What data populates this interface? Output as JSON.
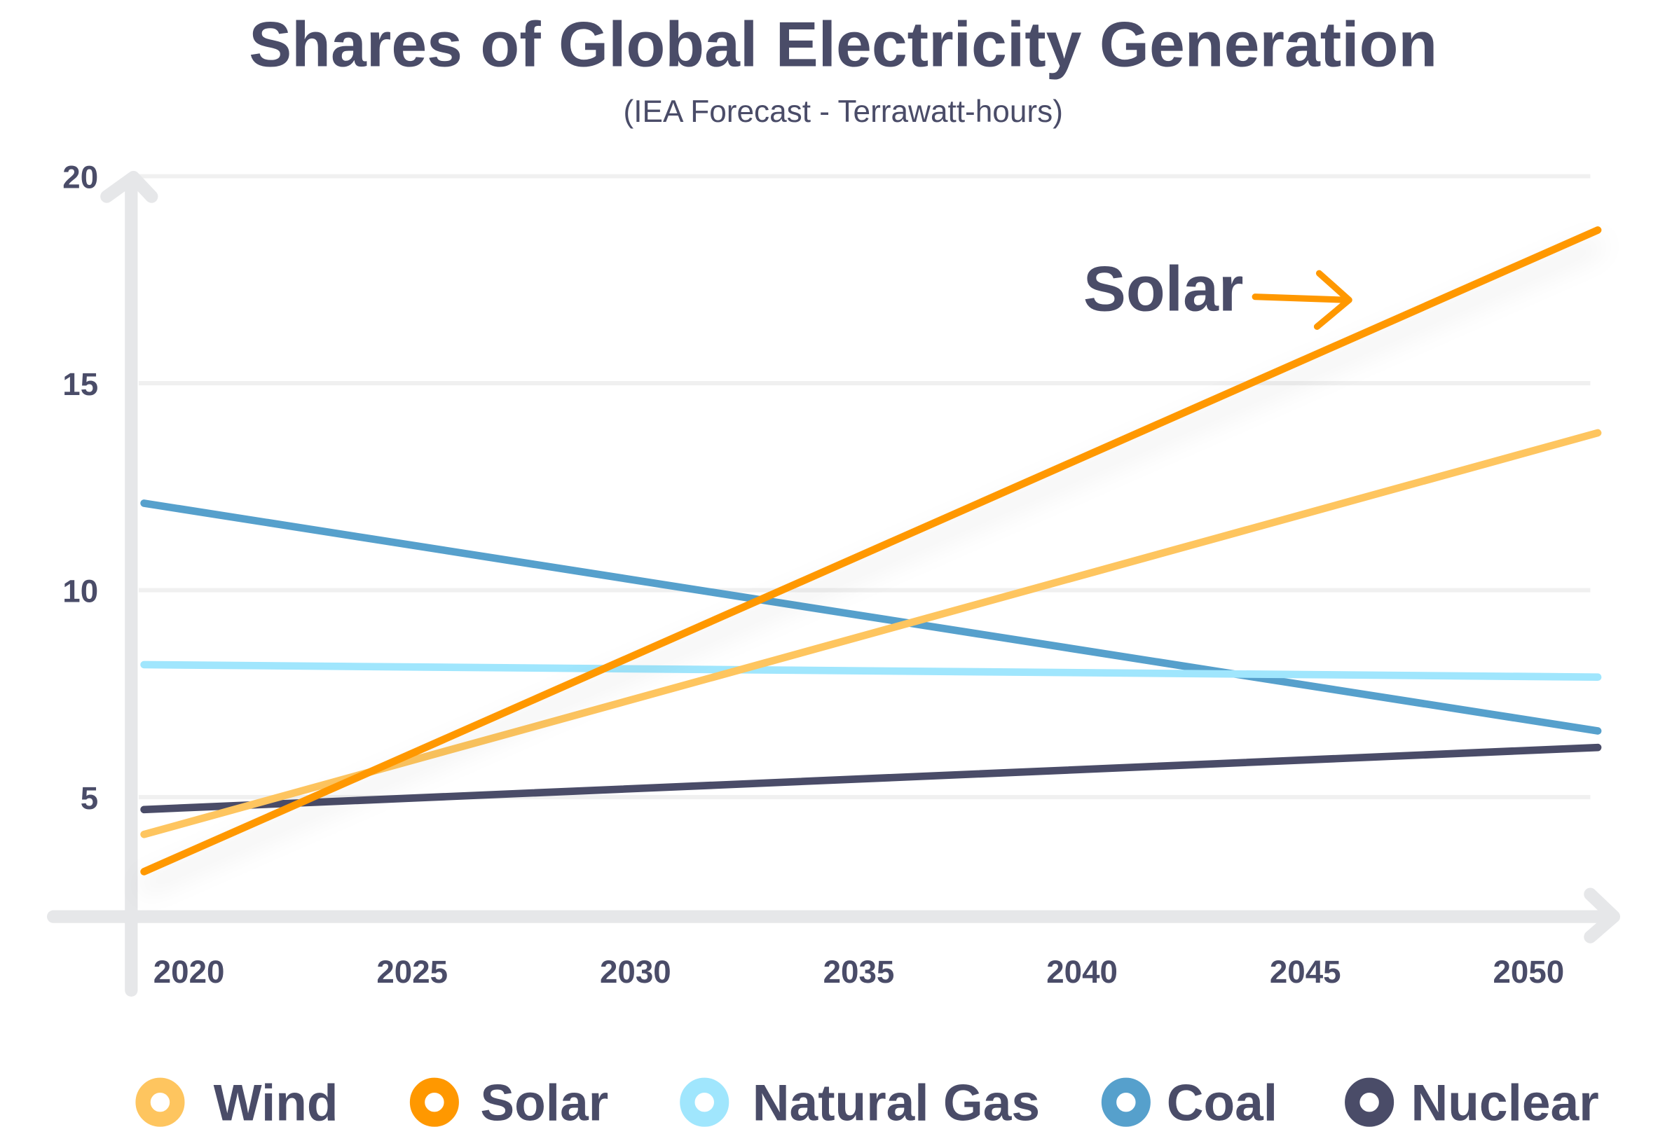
{
  "chart_data": {
    "type": "line",
    "title": "Shares of Global Electricity Generation",
    "subtitle": "(IEA Forecast - Terrawatt-hours)",
    "xlabel": "",
    "ylabel": "",
    "x_ticks": [
      "2020",
      "2025",
      "2030",
      "2035",
      "2040",
      "2045",
      "2050"
    ],
    "y_ticks": [
      "5",
      "10",
      "15",
      "20"
    ],
    "xlim": [
      2019,
      2051.5
    ],
    "ylim": [
      2.3,
      20
    ],
    "grid": true,
    "legend_position": "bottom",
    "annotation": {
      "text": "Solar",
      "color": "#ff9800"
    },
    "series": [
      {
        "name": "Wind",
        "color": "#fec55f",
        "x": [
          2019,
          2051.5
        ],
        "y": [
          4.1,
          13.8
        ]
      },
      {
        "name": "Solar",
        "color": "#ff9800",
        "x": [
          2019,
          2051.5
        ],
        "y": [
          3.2,
          18.7
        ]
      },
      {
        "name": "Natural Gas",
        "color": "#a0e6fd",
        "x": [
          2019,
          2051.5
        ],
        "y": [
          8.2,
          7.9
        ]
      },
      {
        "name": "Coal",
        "color": "#56a0cc",
        "x": [
          2019,
          2051.5
        ],
        "y": [
          12.1,
          6.6
        ]
      },
      {
        "name": "Nuclear",
        "color": "#4a4c68",
        "x": [
          2019,
          2051.5
        ],
        "y": [
          4.7,
          6.2
        ]
      }
    ]
  }
}
